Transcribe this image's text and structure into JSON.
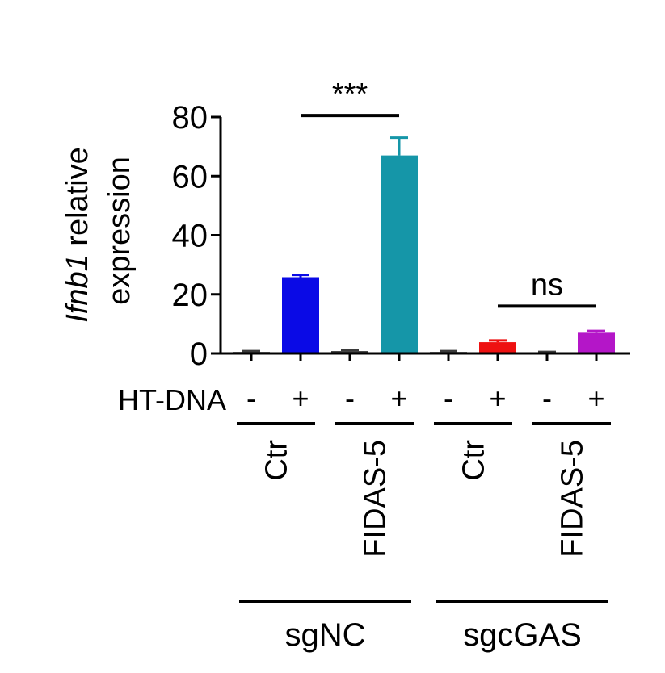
{
  "chart_data": {
    "type": "bar",
    "ylabel": {
      "italic": "Ifnb1",
      "rest": " relative",
      "line2": "expression"
    },
    "ylim": [
      0,
      80
    ],
    "yticks": [
      "0",
      "20",
      "40",
      "60",
      "80"
    ],
    "ytick_values": [
      0,
      20,
      40,
      60,
      80
    ],
    "treatment_label": "HT-DNA",
    "categories": [
      "-",
      "+",
      "-",
      "+",
      "-",
      "+",
      "-",
      "+"
    ],
    "values": [
      0.5,
      25.8,
      0.8,
      67.0,
      0.5,
      3.8,
      0.3,
      7.0
    ],
    "errors": [
      0.3,
      0.8,
      0.4,
      6.0,
      0.3,
      0.6,
      0.2,
      0.6
    ],
    "colors": [
      "#3a3a3a",
      "#0a0ae6",
      "#3a3a3a",
      "#1596a8",
      "#3a3a3a",
      "#ee1111",
      "#3a3a3a",
      "#b416c8"
    ],
    "conditions": [
      "Ctr",
      "FIDAS-5",
      "Ctr",
      "FIDAS-5"
    ],
    "groups": [
      "sgNC",
      "sgcGAS"
    ],
    "significance": [
      {
        "label": "***",
        "from": 1,
        "to": 3,
        "y": 80.5
      },
      {
        "label": "ns",
        "from": 5,
        "to": 7,
        "y": 16
      }
    ],
    "grid": false,
    "legend": "none"
  }
}
